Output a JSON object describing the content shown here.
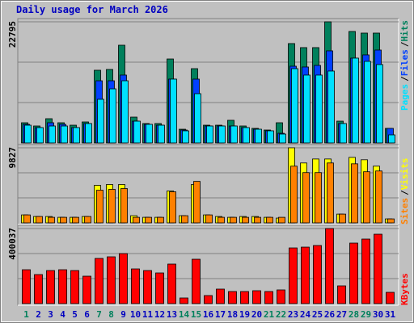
{
  "title": "Daily usage for March 2026",
  "chart_data": [
    {
      "type": "bar",
      "ylim": [
        0,
        22795
      ],
      "yticks": [
        22795
      ],
      "legend_separator": "/",
      "series": [
        {
          "name": "Hits",
          "color": "#00805c",
          "values": [
            3800,
            3190,
            4560,
            3800,
            3340,
            3950,
            13680,
            13830,
            18390,
            4860,
            3650,
            3650,
            15800,
            2580,
            13980,
            3340,
            3340,
            4260,
            3190,
            2740,
            2430,
            3800,
            18700,
            17940,
            17940,
            22795,
            4100,
            20980,
            20670,
            20670,
            2740
          ]
        },
        {
          "name": "Files",
          "color": "#0040ff",
          "values": [
            3500,
            2890,
            3800,
            3500,
            2890,
            3650,
            11700,
            11700,
            12770,
            4100,
            3500,
            3340,
            12010,
            2430,
            12010,
            3190,
            3190,
            3190,
            2890,
            2580,
            2280,
            1820,
            14440,
            14290,
            14590,
            17330,
            3650,
            15960,
            16570,
            17480,
            2740
          ]
        },
        {
          "name": "Pages",
          "color": "#00e0ff",
          "values": [
            3340,
            2890,
            3190,
            3190,
            2890,
            3650,
            8210,
            10180,
            11700,
            4100,
            3500,
            3340,
            12010,
            2280,
            9270,
            3190,
            3190,
            3190,
            2890,
            2580,
            2280,
            1670,
            13980,
            12770,
            12770,
            13530,
            3650,
            15960,
            15350,
            14750,
            1520
          ]
        }
      ]
    },
    {
      "type": "bar",
      "ylim": [
        0,
        9827
      ],
      "yticks": [
        9827
      ],
      "legend_separator": "/",
      "series": [
        {
          "name": "Visits",
          "color": "#ffff00",
          "values": [
            1045,
            836,
            836,
            730,
            730,
            836,
            4910,
            5020,
            5020,
            940,
            730,
            730,
            4180,
            940,
            5020,
            1045,
            836,
            730,
            836,
            836,
            730,
            627,
            9827,
            7840,
            8360,
            8360,
            1150,
            8570,
            8260,
            7420,
            520
          ]
        },
        {
          "name": "Sites",
          "color": "#ff8000",
          "values": [
            1045,
            836,
            730,
            730,
            730,
            836,
            4280,
            4390,
            4490,
            730,
            730,
            730,
            4070,
            940,
            5430,
            1045,
            730,
            730,
            730,
            730,
            730,
            730,
            7420,
            6580,
            6580,
            7840,
            1150,
            7730,
            6690,
            6790,
            520
          ]
        }
      ]
    },
    {
      "type": "bar",
      "ylim": [
        0,
        400037
      ],
      "yticks": [
        400037
      ],
      "categories": [
        "1",
        "2",
        "3",
        "4",
        "5",
        "6",
        "7",
        "8",
        "9",
        "10",
        "11",
        "12",
        "13",
        "14",
        "15",
        "16",
        "17",
        "18",
        "19",
        "20",
        "21",
        "22",
        "23",
        "24",
        "25",
        "26",
        "27",
        "28",
        "29",
        "30",
        "31"
      ],
      "label_colors": [
        "#00805c",
        "#0000c0",
        "#0000c0",
        "#0000c0",
        "#0000c0",
        "#0000c0",
        "#00805c",
        "#00805c",
        "#0000c0",
        "#0000c0",
        "#0000c0",
        "#0000c0",
        "#0000c0",
        "#00805c",
        "#00805c",
        "#0000c0",
        "#0000c0",
        "#0000c0",
        "#0000c0",
        "#0000c0",
        "#00805c",
        "#00805c",
        "#0000c0",
        "#0000c0",
        "#0000c0",
        "#0000c0",
        "#0000c0",
        "#00805c",
        "#00805c",
        "#0000c0",
        "#0000c0"
      ],
      "series": [
        {
          "name": "KBytes",
          "color": "#ff0000",
          "values": [
            180600,
            154800,
            176300,
            180600,
            176300,
            146200,
            240800,
            249400,
            266600,
            184900,
            176300,
            163400,
            210700,
            30100,
            236500,
            43000,
            77400,
            64500,
            64500,
            68800,
            64500,
            73100,
            296700,
            301000,
            309600,
            400037,
            94600,
            322500,
            344000,
            369800,
            60200
          ]
        }
      ]
    }
  ]
}
